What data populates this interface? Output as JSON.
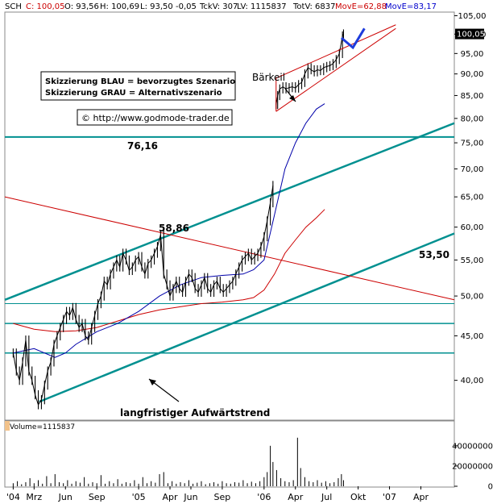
{
  "header": {
    "symbol": "SCH",
    "close": "C: 100,05",
    "open": "O: 93,56",
    "high": "H: 100,69",
    "low": "L: 93,50",
    "change": "-0,05",
    "tick_volume": "TckV: 307",
    "last_volume": "LV: 1115837",
    "total_volume": "TotV: 6837",
    "ma1": "MovE=62,88",
    "ma2": "MovE=83,17"
  },
  "colors": {
    "price": "#000000",
    "channel": "#009090",
    "ma_red": "#cc0000",
    "ma_blue": "#0000aa",
    "background": "#ffffff",
    "volume": "#000000"
  },
  "legend_box": {
    "line1": "Skizzierung BLAU = bevorzugtes Szenario",
    "line2": "Skizzierung GRAU = Alternativszenario"
  },
  "copyright": "© http://www.godmode-trader.de",
  "annotations": {
    "level_7616": "76,16",
    "level_5886": "58,86",
    "level_5350": "53,50",
    "barkeil": "Bärkeil",
    "trend": "langfristiger Aufwärtstrend"
  },
  "current_price_tag": "100,05",
  "volume_label": "Volume=1115837",
  "chart_data": {
    "type": "line",
    "title": "",
    "xlabel": "",
    "ylabel": "",
    "ylim": [
      36,
      106
    ],
    "y_scale": "log",
    "price_ticks": [
      "105,00",
      "100,00",
      "95,00",
      "90,00",
      "85,00",
      "80,00",
      "75,00",
      "70,00",
      "65,00",
      "60,00",
      "55,00",
      "50,00",
      "45,00",
      "40,00"
    ],
    "price_tick_values": [
      105,
      100,
      95,
      90,
      85,
      80,
      75,
      70,
      65,
      60,
      55,
      50,
      45,
      40
    ],
    "x_labels": [
      {
        "label": "'04",
        "t": 0
      },
      {
        "label": "Mrz",
        "t": 2
      },
      {
        "label": "Jun",
        "t": 5
      },
      {
        "label": "Sep",
        "t": 8
      },
      {
        "label": "'05",
        "t": 12
      },
      {
        "label": "Apr",
        "t": 15
      },
      {
        "label": "Jun",
        "t": 17
      },
      {
        "label": "Sep",
        "t": 20
      },
      {
        "label": "'06",
        "t": 24
      },
      {
        "label": "Apr",
        "t": 27
      },
      {
        "label": "Jul",
        "t": 30
      },
      {
        "label": "Okt",
        "t": 33
      },
      {
        "label": "'07",
        "t": 36
      },
      {
        "label": "Apr",
        "t": 39
      }
    ],
    "xlim": [
      -0.8,
      42.2
    ],
    "price_series": [
      [
        0,
        43
      ],
      [
        0.3,
        41
      ],
      [
        0.6,
        40
      ],
      [
        0.9,
        42
      ],
      [
        1.2,
        44.5
      ],
      [
        1.5,
        41
      ],
      [
        1.8,
        40
      ],
      [
        2.1,
        38.5
      ],
      [
        2.4,
        37.5
      ],
      [
        2.7,
        38
      ],
      [
        3.0,
        39.5
      ],
      [
        3.3,
        41
      ],
      [
        3.6,
        42
      ],
      [
        3.9,
        44
      ],
      [
        4.2,
        45
      ],
      [
        4.5,
        46
      ],
      [
        4.8,
        47
      ],
      [
        5.1,
        48
      ],
      [
        5.4,
        47.5
      ],
      [
        5.7,
        48.5
      ],
      [
        6.0,
        47
      ],
      [
        6.3,
        46
      ],
      [
        6.6,
        46.5
      ],
      [
        6.9,
        45
      ],
      [
        7.2,
        44.5
      ],
      [
        7.5,
        46
      ],
      [
        7.8,
        47.5
      ],
      [
        8.1,
        49
      ],
      [
        8.4,
        50
      ],
      [
        8.7,
        52
      ],
      [
        9.0,
        51.5
      ],
      [
        9.3,
        53
      ],
      [
        9.6,
        54
      ],
      [
        9.9,
        55
      ],
      [
        10.2,
        54
      ],
      [
        10.5,
        56
      ],
      [
        10.8,
        55
      ],
      [
        11.1,
        53.5
      ],
      [
        11.4,
        54
      ],
      [
        11.7,
        55
      ],
      [
        12.0,
        55.5
      ],
      [
        12.3,
        54
      ],
      [
        12.6,
        53
      ],
      [
        12.9,
        54.5
      ],
      [
        13.2,
        55
      ],
      [
        13.5,
        56
      ],
      [
        13.8,
        57
      ],
      [
        14.1,
        58.8
      ],
      [
        14.4,
        53
      ],
      [
        14.7,
        51.5
      ],
      [
        15.0,
        50
      ],
      [
        15.3,
        51
      ],
      [
        15.6,
        52
      ],
      [
        15.9,
        51
      ],
      [
        16.2,
        50.5
      ],
      [
        16.5,
        52
      ],
      [
        16.8,
        53
      ],
      [
        17.1,
        52.5
      ],
      [
        17.4,
        51
      ],
      [
        17.7,
        50.5
      ],
      [
        18.0,
        51.5
      ],
      [
        18.3,
        52.5
      ],
      [
        18.6,
        51
      ],
      [
        18.9,
        50.5
      ],
      [
        19.2,
        51.5
      ],
      [
        19.5,
        52
      ],
      [
        19.8,
        51
      ],
      [
        20.1,
        50.5
      ],
      [
        20.4,
        51
      ],
      [
        20.7,
        51.5
      ],
      [
        21.0,
        52
      ],
      [
        21.3,
        53
      ],
      [
        21.6,
        54
      ],
      [
        21.9,
        55
      ],
      [
        22.2,
        55.5
      ],
      [
        22.5,
        56
      ],
      [
        22.8,
        55
      ],
      [
        23.1,
        55.5
      ],
      [
        23.4,
        56
      ],
      [
        23.7,
        57
      ],
      [
        24.0,
        58.5
      ],
      [
        24.3,
        61
      ],
      [
        24.6,
        64
      ],
      [
        24.85,
        67
      ]
    ],
    "price_series_2": [
      [
        25.15,
        83
      ],
      [
        25.3,
        85
      ],
      [
        25.5,
        86.5
      ],
      [
        25.8,
        87
      ],
      [
        26.1,
        86.5
      ],
      [
        26.4,
        86.8
      ],
      [
        26.7,
        87
      ],
      [
        27.0,
        86.7
      ],
      [
        27.3,
        87.5
      ],
      [
        27.6,
        88
      ],
      [
        27.9,
        90
      ],
      [
        28.2,
        91.5
      ],
      [
        28.5,
        91
      ],
      [
        28.8,
        90.5
      ],
      [
        29.1,
        91
      ],
      [
        29.4,
        90.8
      ],
      [
        29.7,
        91.5
      ],
      [
        30.0,
        91.8
      ],
      [
        30.3,
        92
      ],
      [
        30.6,
        92.5
      ],
      [
        30.9,
        93.5
      ],
      [
        31.2,
        95
      ],
      [
        31.5,
        99.5
      ],
      [
        31.6,
        100.05
      ]
    ],
    "ma_red": [
      [
        0,
        46.5
      ],
      [
        2,
        45.8
      ],
      [
        4,
        45.5
      ],
      [
        6,
        45.6
      ],
      [
        8,
        46
      ],
      [
        10,
        46.8
      ],
      [
        12,
        47.6
      ],
      [
        14,
        48.2
      ],
      [
        16,
        48.6
      ],
      [
        18,
        49
      ],
      [
        20,
        49.2
      ],
      [
        22,
        49.5
      ],
      [
        23,
        49.8
      ],
      [
        24,
        50.8
      ],
      [
        25,
        53
      ],
      [
        26,
        56
      ],
      [
        27,
        58
      ],
      [
        28,
        60
      ],
      [
        29,
        61.5
      ],
      [
        29.8,
        62.88
      ]
    ],
    "ma_blue": [
      [
        0,
        43
      ],
      [
        2,
        43.5
      ],
      [
        4,
        42.5
      ],
      [
        5,
        43
      ],
      [
        6,
        44
      ],
      [
        8,
        45.5
      ],
      [
        10,
        46.5
      ],
      [
        12,
        48
      ],
      [
        14,
        50
      ],
      [
        16,
        51.5
      ],
      [
        18,
        52.5
      ],
      [
        20,
        52.8
      ],
      [
        22,
        53
      ],
      [
        23,
        53.6
      ],
      [
        24,
        55
      ],
      [
        25,
        62
      ],
      [
        26,
        70
      ],
      [
        27,
        75
      ],
      [
        28,
        79
      ],
      [
        29,
        82
      ],
      [
        29.8,
        83.17
      ]
    ],
    "channel_upper": [
      [
        -0.8,
        49.5
      ],
      [
        42.2,
        79
      ]
    ],
    "channel_lower": [
      [
        2.5,
        37.8
      ],
      [
        42.2,
        59
      ]
    ],
    "red_downtrend": [
      [
        -0.8,
        65
      ],
      [
        42.2,
        49.5
      ]
    ],
    "horizontal_levels": [
      76.16,
      49,
      46.5,
      43
    ],
    "wedge_upper": [
      [
        25.15,
        89
      ],
      [
        36.6,
        102.5
      ]
    ],
    "wedge_lower": [
      [
        25.15,
        81.5
      ],
      [
        36.6,
        101.5
      ]
    ],
    "forecast_arrow": [
      [
        31.4,
        99
      ],
      [
        32.5,
        96.5
      ],
      [
        33.6,
        101.5
      ]
    ],
    "volume": {
      "ylim": [
        0,
        55000000
      ],
      "ticks": [
        "40000000",
        "20000000",
        "0"
      ],
      "tick_values": [
        40000000,
        20000000,
        0
      ],
      "bars": [
        [
          0,
          3000000
        ],
        [
          0.4,
          5000000
        ],
        [
          0.8,
          2000000
        ],
        [
          1.2,
          4000000
        ],
        [
          1.6,
          8000000
        ],
        [
          2.0,
          3000000
        ],
        [
          2.4,
          6000000
        ],
        [
          2.8,
          2500000
        ],
        [
          3.2,
          10000000
        ],
        [
          3.6,
          3000000
        ],
        [
          4.0,
          12000000
        ],
        [
          4.4,
          4000000
        ],
        [
          4.8,
          3000000
        ],
        [
          5.2,
          6000000
        ],
        [
          5.6,
          2500000
        ],
        [
          6.0,
          5000000
        ],
        [
          6.4,
          3500000
        ],
        [
          6.8,
          9000000
        ],
        [
          7.2,
          2500000
        ],
        [
          7.6,
          4000000
        ],
        [
          8.0,
          3000000
        ],
        [
          8.4,
          11000000
        ],
        [
          8.8,
          2500000
        ],
        [
          9.2,
          5000000
        ],
        [
          9.6,
          3000000
        ],
        [
          10.0,
          7000000
        ],
        [
          10.4,
          2500000
        ],
        [
          10.8,
          4000000
        ],
        [
          11.2,
          3000000
        ],
        [
          11.6,
          6000000
        ],
        [
          12.0,
          2500000
        ],
        [
          12.4,
          9000000
        ],
        [
          12.8,
          3000000
        ],
        [
          13.2,
          5000000
        ],
        [
          13.6,
          3500000
        ],
        [
          14.0,
          12000000
        ],
        [
          14.4,
          14000000
        ],
        [
          14.8,
          3000000
        ],
        [
          15.2,
          5000000
        ],
        [
          15.6,
          2500000
        ],
        [
          16.0,
          4000000
        ],
        [
          16.4,
          3000000
        ],
        [
          16.8,
          6000000
        ],
        [
          17.2,
          2500000
        ],
        [
          17.6,
          3500000
        ],
        [
          18.0,
          5000000
        ],
        [
          18.4,
          2000000
        ],
        [
          18.8,
          3000000
        ],
        [
          19.2,
          4000000
        ],
        [
          19.6,
          2500000
        ],
        [
          20.0,
          5000000
        ],
        [
          20.4,
          3000000
        ],
        [
          20.8,
          2500000
        ],
        [
          21.2,
          4000000
        ],
        [
          21.6,
          3500000
        ],
        [
          22.0,
          6000000
        ],
        [
          22.4,
          3000000
        ],
        [
          22.8,
          4500000
        ],
        [
          23.2,
          3000000
        ],
        [
          23.6,
          5000000
        ],
        [
          24.0,
          9000000
        ],
        [
          24.3,
          14000000
        ],
        [
          24.6,
          40000000
        ],
        [
          24.85,
          24000000
        ],
        [
          25.2,
          16000000
        ],
        [
          25.6,
          8000000
        ],
        [
          26.0,
          5000000
        ],
        [
          26.4,
          4000000
        ],
        [
          26.8,
          6000000
        ],
        [
          27.2,
          48000000
        ],
        [
          27.5,
          18000000
        ],
        [
          27.9,
          9000000
        ],
        [
          28.3,
          5000000
        ],
        [
          28.7,
          4000000
        ],
        [
          29.1,
          6000000
        ],
        [
          29.5,
          3500000
        ],
        [
          29.9,
          5000000
        ],
        [
          30.3,
          3000000
        ],
        [
          30.7,
          4000000
        ],
        [
          31.1,
          8000000
        ],
        [
          31.4,
          12000000
        ],
        [
          31.6,
          6000000
        ]
      ]
    }
  }
}
